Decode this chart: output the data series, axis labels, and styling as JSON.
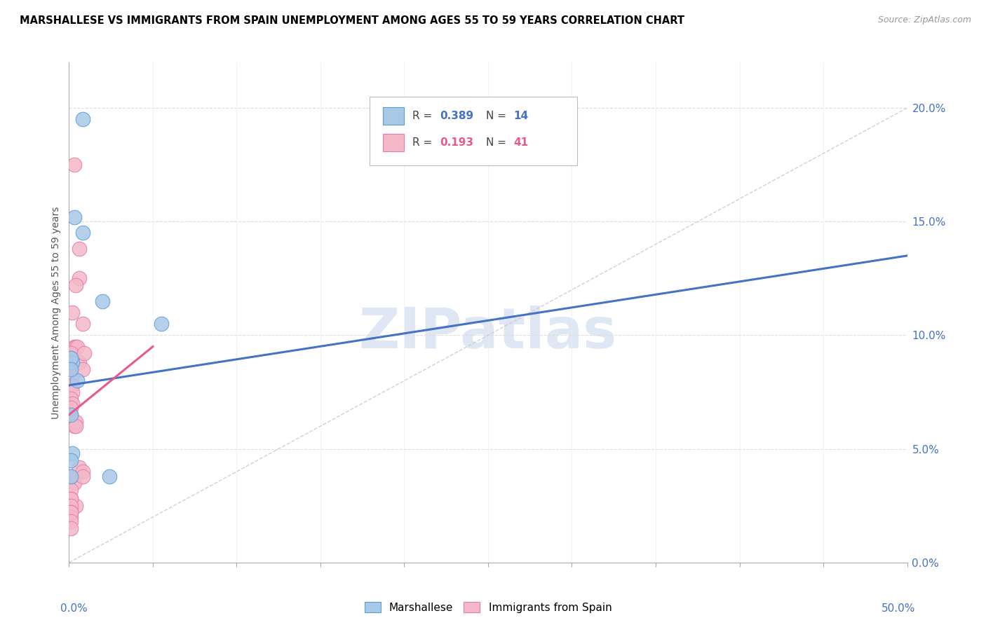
{
  "title": "MARSHALLESE VS IMMIGRANTS FROM SPAIN UNEMPLOYMENT AMONG AGES 55 TO 59 YEARS CORRELATION CHART",
  "source": "Source: ZipAtlas.com",
  "ylabel": "Unemployment Among Ages 55 to 59 years",
  "blue_color": "#a8c8e8",
  "pink_color": "#f4b8c8",
  "blue_edge_color": "#5a9fd4",
  "pink_edge_color": "#e87aaa",
  "blue_line_color": "#4472c4",
  "pink_line_color": "#e85a8a",
  "diag_line_color": "#cccccc",
  "watermark": "ZIPatlas",
  "watermark_color": "#c8d8ec",
  "right_tick_color": "#4472c4",
  "blue_scatter_x": [
    0.5,
    0.8,
    0.8,
    0.3,
    0.2,
    0.1,
    0.1,
    0.1,
    0.2,
    0.1,
    0.1,
    2.0,
    5.5,
    2.4
  ],
  "blue_scatter_y": [
    8.0,
    19.5,
    14.5,
    15.2,
    8.8,
    9.0,
    8.5,
    6.5,
    4.8,
    4.5,
    3.8,
    11.5,
    10.5,
    3.8
  ],
  "pink_scatter_x": [
    0.3,
    0.6,
    0.6,
    0.4,
    0.8,
    0.2,
    0.3,
    0.4,
    0.5,
    0.1,
    0.1,
    0.1,
    0.2,
    0.2,
    0.2,
    0.1,
    0.2,
    0.1,
    0.1,
    0.1,
    0.3,
    0.4,
    0.4,
    0.6,
    0.8,
    0.9,
    0.3,
    0.1,
    0.1,
    0.1,
    0.4,
    0.6,
    0.8,
    0.8,
    0.1,
    0.1,
    0.1,
    0.1,
    0.1,
    0.1,
    0.1
  ],
  "pink_scatter_y": [
    17.5,
    13.8,
    12.5,
    12.2,
    10.5,
    11.0,
    9.5,
    9.5,
    9.5,
    9.2,
    9.0,
    8.5,
    8.2,
    7.8,
    7.5,
    7.2,
    7.0,
    6.5,
    6.8,
    6.2,
    6.0,
    6.2,
    6.0,
    8.8,
    8.5,
    9.2,
    3.5,
    3.8,
    3.2,
    2.8,
    2.5,
    4.2,
    4.0,
    3.8,
    2.8,
    2.5,
    2.2,
    2.0,
    2.2,
    1.8,
    1.5
  ],
  "xmin": 0.0,
  "xmax": 50.0,
  "ymin": 0.0,
  "ymax": 22.0,
  "yticks": [
    0.0,
    5.0,
    10.0,
    15.0,
    20.0
  ],
  "xtick_vals": [
    0,
    5,
    10,
    15,
    20,
    25,
    30,
    35,
    40,
    45,
    50
  ],
  "blue_line_x": [
    0.0,
    50.0
  ],
  "blue_line_y": [
    7.8,
    13.5
  ],
  "pink_line_x": [
    0.0,
    5.0
  ],
  "pink_line_y": [
    6.5,
    9.5
  ],
  "diag_line_x": [
    0.0,
    50.0
  ],
  "diag_line_y": [
    0.0,
    20.0
  ]
}
